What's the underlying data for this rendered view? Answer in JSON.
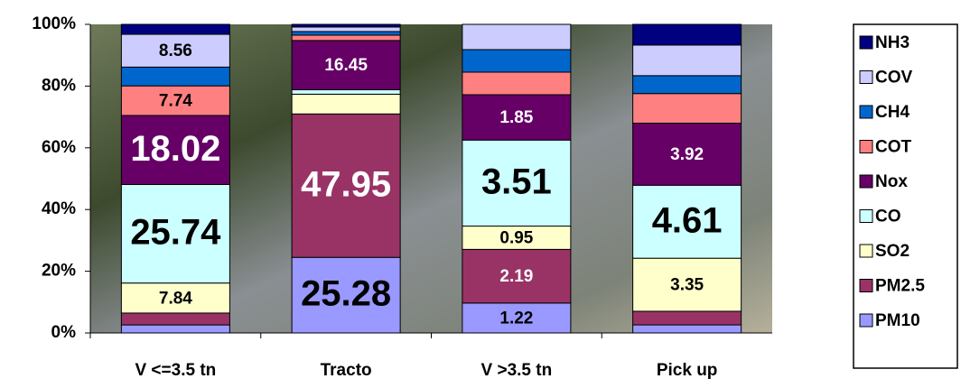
{
  "chart_data": {
    "type": "bar",
    "stacking": "percent",
    "categories": [
      "V <=3.5 tn",
      "Tracto",
      "V >3.5 tn",
      "Pick up"
    ],
    "series": [
      {
        "name": "PM10",
        "color": "#9999ff",
        "values": [
          2.1,
          25.28,
          1.22,
          0.51
        ],
        "value_labels": [
          null,
          "25.28",
          "1.22",
          null
        ]
      },
      {
        "name": "PM2.5",
        "color": "#993366",
        "values": [
          3.1,
          47.95,
          2.19,
          0.86
        ],
        "value_labels": [
          null,
          "47.95",
          "2.19",
          null
        ]
      },
      {
        "name": "SO2",
        "color": "#ffffcc",
        "values": [
          7.84,
          6.6,
          0.95,
          3.35
        ],
        "value_labels": [
          "7.84",
          null,
          "0.95",
          "3.35"
        ]
      },
      {
        "name": "CO",
        "color": "#ccffff",
        "values": [
          25.74,
          1.5,
          3.51,
          4.61
        ],
        "value_labels": [
          "25.74",
          null,
          "3.51",
          "4.61"
        ]
      },
      {
        "name": "Nox",
        "color": "#660066",
        "values": [
          18.02,
          16.45,
          1.85,
          3.92
        ],
        "value_labels": [
          "18.02",
          "16.45",
          "1.85",
          "3.92"
        ]
      },
      {
        "name": "COT",
        "color": "#ff8080",
        "values": [
          7.74,
          1.8,
          0.92,
          1.87
        ],
        "value_labels": [
          "7.74",
          null,
          null,
          null
        ]
      },
      {
        "name": "CH4",
        "color": "#0066cc",
        "values": [
          4.9,
          1.2,
          0.92,
          1.13
        ],
        "value_labels": [
          null,
          null,
          null,
          null
        ]
      },
      {
        "name": "COV",
        "color": "#ccccff",
        "values": [
          8.56,
          1.5,
          1.03,
          1.93
        ],
        "value_labels": [
          "8.56",
          null,
          null,
          null
        ]
      },
      {
        "name": "NH3",
        "color": "#000080",
        "values": [
          2.6,
          0.9,
          0,
          1.31
        ],
        "value_labels": [
          null,
          null,
          null,
          null
        ]
      }
    ],
    "ylim": [
      0,
      100
    ],
    "yticks": [
      {
        "value": 0,
        "label": "0%"
      },
      {
        "value": 20,
        "label": "20%"
      },
      {
        "value": 40,
        "label": "40%"
      },
      {
        "value": 60,
        "label": "60%"
      },
      {
        "value": 80,
        "label": "80%"
      },
      {
        "value": 100,
        "label": "100%"
      }
    ],
    "legend": "right"
  }
}
